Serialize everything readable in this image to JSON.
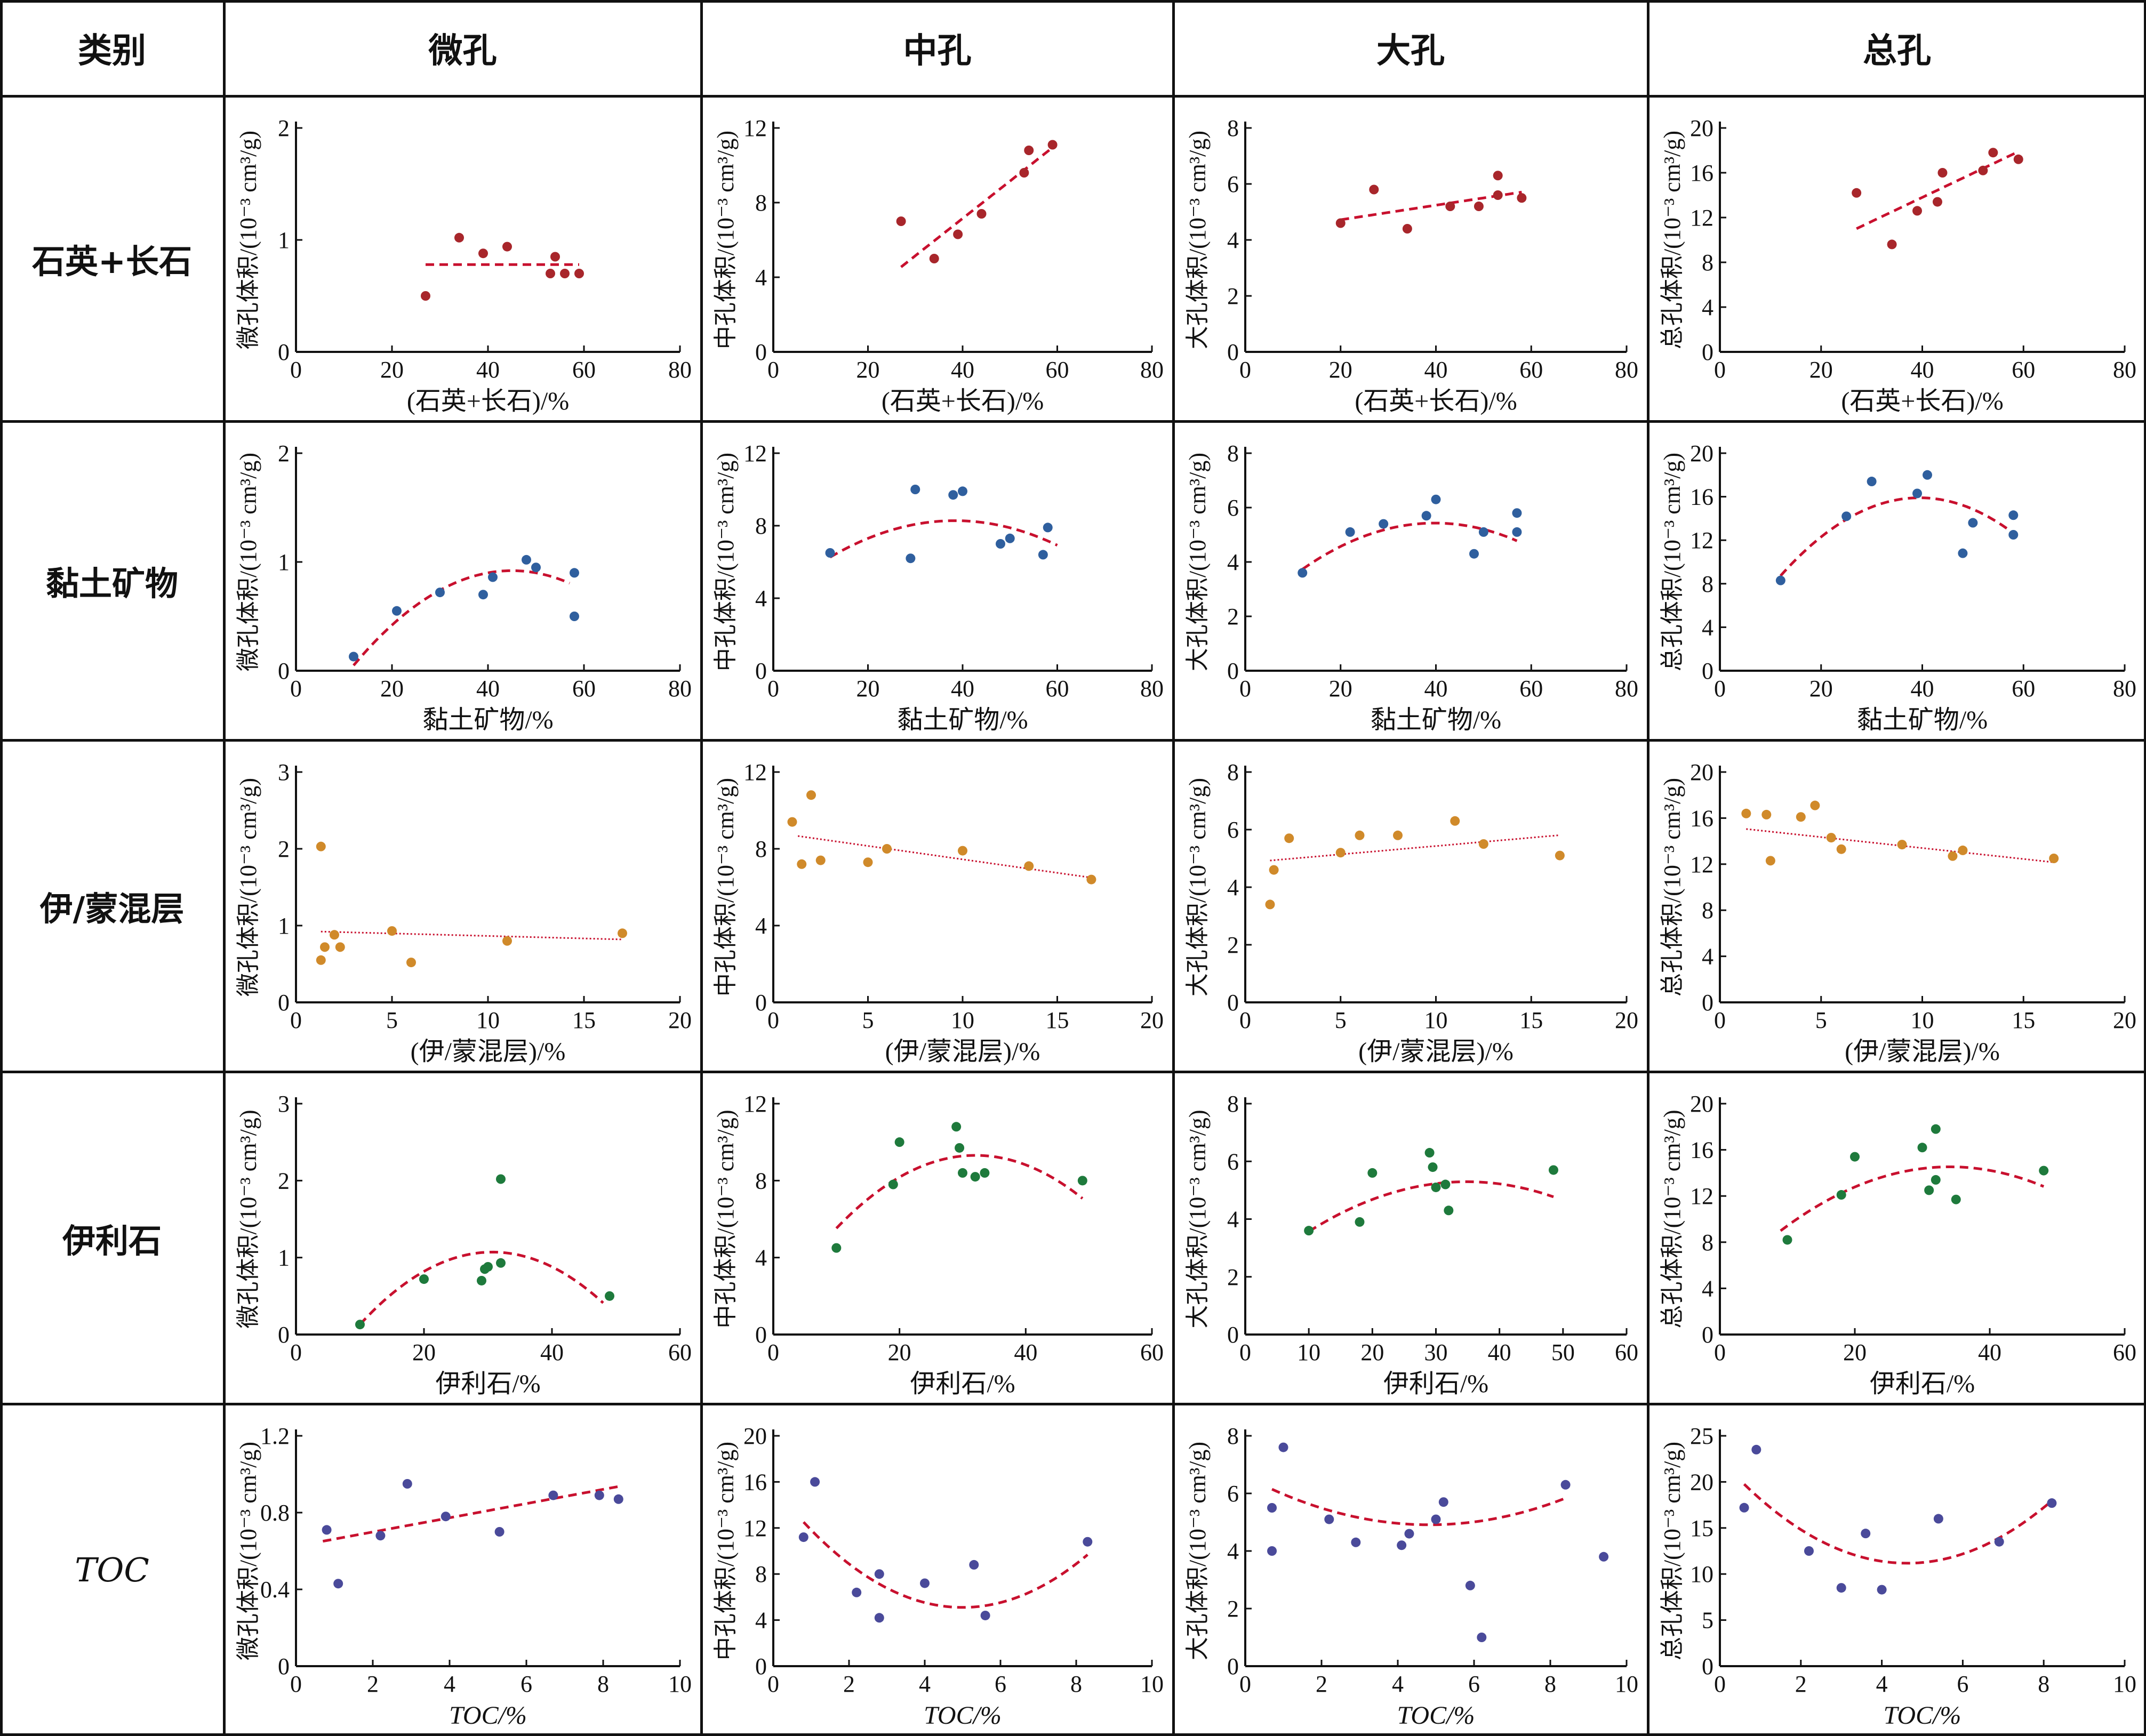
{
  "header": {
    "category": "类别",
    "columns": [
      "微孔",
      "中孔",
      "大孔",
      "总孔"
    ]
  },
  "rows": [
    {
      "label": "石英+长石",
      "italic": false,
      "color": "#a8262b",
      "points_x": [
        27.0,
        34.0,
        39.0,
        44.0,
        53.0,
        54.0,
        56.0,
        59.0
      ],
      "xlabel": "(石英+长石)/%"
    },
    {
      "label": "黏土矿物",
      "italic": false,
      "color": "#2f5f9e",
      "points_x": [
        12.0,
        21.0,
        30.0,
        39.0,
        41.0,
        48.0,
        50.0,
        58.0,
        58.0
      ],
      "xlabel": "黏土矿物/%"
    },
    {
      "label": "伊/蒙混层",
      "italic": false,
      "color": "#d08a2a",
      "points_x": [
        1.3,
        1.5,
        2.0,
        2.3,
        5.0,
        6.0,
        11.0,
        17.0
      ],
      "xlabel": "(伊/蒙混层)/%"
    },
    {
      "label": "伊利石",
      "italic": false,
      "color": "#1e7a3c",
      "points_x": [
        10.0,
        20.0,
        29.0,
        29.5,
        30.0,
        32.0,
        32.0,
        49.0
      ],
      "xlabel": "伊利石/%"
    },
    {
      "label": "TOC",
      "italic": true,
      "color": "#4a4a9a",
      "points_x": [
        0.8,
        1.1,
        2.2,
        2.9,
        3.9,
        5.3,
        6.7,
        7.9,
        8.4
      ],
      "xlabel": "TOC/%"
    }
  ],
  "chart_data": [
    {
      "type": "scatter",
      "title": "微孔 × 石英+长石",
      "xlabel": "(石英+长石)/%",
      "ylabel": "微孔体积/(10⁻³ cm³/g)",
      "xlim": [
        0,
        80
      ],
      "ylim": [
        0,
        2
      ],
      "xticks": [
        0,
        20,
        40,
        60,
        80
      ],
      "yticks": [
        0,
        1,
        2
      ],
      "color": "#a8262b",
      "x": [
        27,
        34,
        39,
        44,
        53,
        54,
        56,
        59
      ],
      "y": [
        0.5,
        1.02,
        0.88,
        0.94,
        0.7,
        0.85,
        0.7,
        0.7
      ],
      "trend": {
        "kind": "poly",
        "coef": [
          0.78
        ],
        "from": 27,
        "to": 59,
        "style": "dashed"
      }
    },
    {
      "type": "scatter",
      "title": "中孔 × 石英+长石",
      "xlabel": "(石英+长石)/%",
      "ylabel": "中孔体积/(10⁻³ cm³/g)",
      "xlim": [
        0,
        80
      ],
      "ylim": [
        0,
        12
      ],
      "xticks": [
        0,
        20,
        40,
        60,
        80
      ],
      "yticks": [
        0,
        4,
        8,
        12
      ],
      "color": "#a8262b",
      "x": [
        27,
        34,
        39,
        44,
        53,
        54,
        59
      ],
      "y": [
        7.0,
        5.0,
        6.3,
        7.4,
        9.6,
        10.8,
        11.1
      ],
      "trend": {
        "kind": "poly",
        "coef": [
          -0.85,
          0.2
        ],
        "from": 27,
        "to": 59,
        "style": "dashed"
      }
    },
    {
      "type": "scatter",
      "title": "大孔 × 石英+长石",
      "xlabel": "(石英+长石)/%",
      "ylabel": "大孔体积/(10⁻³ cm³/g)",
      "xlim": [
        0,
        80
      ],
      "ylim": [
        0,
        8
      ],
      "xticks": [
        0,
        20,
        40,
        60,
        80
      ],
      "yticks": [
        0,
        2,
        4,
        6,
        8
      ],
      "color": "#a8262b",
      "x": [
        20,
        27,
        34,
        43,
        49,
        53,
        53,
        58
      ],
      "y": [
        4.6,
        5.8,
        4.4,
        5.2,
        5.2,
        6.3,
        5.6,
        5.5
      ],
      "trend": {
        "kind": "poly",
        "coef": [
          4.2,
          0.026
        ],
        "from": 20,
        "to": 58,
        "style": "dashed"
      }
    },
    {
      "type": "scatter",
      "title": "总孔 × 石英+长石",
      "xlabel": "(石英+长石)/%",
      "ylabel": "总孔体积/(10⁻³ cm³/g)",
      "xlim": [
        0,
        80
      ],
      "ylim": [
        0,
        20
      ],
      "xticks": [
        0,
        20,
        40,
        60,
        80
      ],
      "yticks": [
        0,
        4,
        8,
        12,
        16,
        20
      ],
      "color": "#a8262b",
      "x": [
        27,
        34,
        39,
        43,
        44,
        52,
        54,
        59
      ],
      "y": [
        14.2,
        9.6,
        12.6,
        13.4,
        16.0,
        16.2,
        17.8,
        17.2
      ],
      "trend": {
        "kind": "poly",
        "coef": [
          5.2,
          0.215
        ],
        "from": 27,
        "to": 59,
        "style": "dashed"
      }
    },
    {
      "type": "scatter",
      "title": "微孔 × 黏土矿物",
      "xlabel": "黏土矿物/%",
      "ylabel": "微孔体积/(10⁻³ cm³/g)",
      "xlim": [
        0,
        80
      ],
      "ylim": [
        0,
        2
      ],
      "xticks": [
        0,
        20,
        40,
        60,
        80
      ],
      "yticks": [
        0,
        1,
        2
      ],
      "color": "#2f5f9e",
      "x": [
        12,
        21,
        30,
        39,
        41,
        48,
        50,
        58,
        58
      ],
      "y": [
        0.13,
        0.55,
        0.72,
        0.7,
        0.86,
        1.02,
        0.95,
        0.5,
        0.9
      ],
      "trend": {
        "kind": "poly",
        "coef": [
          -0.7,
          0.072,
          -0.0008
        ],
        "from": 12,
        "to": 57,
        "style": "dashed"
      }
    },
    {
      "type": "scatter",
      "title": "中孔 × 黏土矿物",
      "xlabel": "黏土矿物/%",
      "ylabel": "中孔体积/(10⁻³ cm³/g)",
      "xlim": [
        0,
        80
      ],
      "ylim": [
        0,
        12
      ],
      "xticks": [
        0,
        20,
        40,
        60,
        80
      ],
      "yticks": [
        0,
        4,
        8,
        12
      ],
      "color": "#2f5f9e",
      "x": [
        12,
        29,
        30,
        38,
        40,
        48,
        50,
        57,
        58
      ],
      "y": [
        6.5,
        6.2,
        10.0,
        9.7,
        9.9,
        7.0,
        7.3,
        6.4,
        7.9
      ],
      "trend": {
        "kind": "poly",
        "coef": [
          4.01,
          0.2225,
          -0.0029
        ],
        "from": 12,
        "to": 60,
        "style": "dashed"
      }
    },
    {
      "type": "scatter",
      "title": "大孔 × 黏土矿物",
      "xlabel": "黏土矿物/%",
      "ylabel": "大孔体积/(10⁻³ cm³/g)",
      "xlim": [
        0,
        80
      ],
      "ylim": [
        0,
        8
      ],
      "xticks": [
        0,
        20,
        40,
        60,
        80
      ],
      "yticks": [
        0,
        2,
        4,
        6,
        8
      ],
      "color": "#2f5f9e",
      "x": [
        12,
        22,
        29,
        38,
        40,
        48,
        50,
        57,
        57
      ],
      "y": [
        3.6,
        5.1,
        5.4,
        5.7,
        6.3,
        4.3,
        5.1,
        5.1,
        5.8
      ],
      "trend": {
        "kind": "poly",
        "coef": [
          1.95,
          0.175,
          -0.0022
        ],
        "from": 12,
        "to": 57,
        "style": "dashed"
      }
    },
    {
      "type": "scatter",
      "title": "总孔 × 黏土矿物",
      "xlabel": "黏土矿物/%",
      "ylabel": "总孔体积/(10⁻³ cm³/g)",
      "xlim": [
        0,
        80
      ],
      "ylim": [
        0,
        20
      ],
      "xticks": [
        0,
        20,
        40,
        60,
        80
      ],
      "yticks": [
        0,
        4,
        8,
        12,
        16,
        20
      ],
      "color": "#2f5f9e",
      "x": [
        12,
        25,
        30,
        39,
        41,
        48,
        50,
        58,
        58
      ],
      "y": [
        8.3,
        14.2,
        17.4,
        16.3,
        18.0,
        10.8,
        13.6,
        12.5,
        14.3
      ],
      "trend": {
        "kind": "poly",
        "coef": [
          1.1,
          0.75,
          -0.0095
        ],
        "from": 12,
        "to": 58,
        "style": "dashed"
      }
    },
    {
      "type": "scatter",
      "title": "微孔 × 伊/蒙混层",
      "xlabel": "(伊/蒙混层)/%",
      "ylabel": "微孔体积/(10⁻³ cm³/g)",
      "xlim": [
        0,
        20
      ],
      "ylim": [
        0,
        3
      ],
      "xticks": [
        0,
        5,
        10,
        15,
        20
      ],
      "yticks": [
        0,
        1,
        2,
        3
      ],
      "color": "#d08a2a",
      "x": [
        1.3,
        1.3,
        1.5,
        2.0,
        2.3,
        5.0,
        6.0,
        11.0,
        17.0
      ],
      "y": [
        2.03,
        0.55,
        0.72,
        0.88,
        0.72,
        0.93,
        0.52,
        0.8,
        0.9
      ],
      "trend": {
        "kind": "poly",
        "coef": [
          0.93,
          -0.0065
        ],
        "from": 1.3,
        "to": 17,
        "style": "dotted"
      }
    },
    {
      "type": "scatter",
      "title": "中孔 × 伊/蒙混层",
      "xlabel": "(伊/蒙混层)/%",
      "ylabel": "中孔体积/(10⁻³ cm³/g)",
      "xlim": [
        0,
        20
      ],
      "ylim": [
        0,
        12
      ],
      "xticks": [
        0,
        5,
        10,
        15,
        20
      ],
      "yticks": [
        0,
        4,
        8,
        12
      ],
      "color": "#d08a2a",
      "x": [
        1.0,
        1.5,
        2.0,
        2.5,
        5.0,
        6.0,
        10.0,
        13.5,
        16.8
      ],
      "y": [
        9.4,
        7.2,
        10.8,
        7.4,
        7.3,
        8.0,
        7.9,
        7.1,
        6.4
      ],
      "trend": {
        "kind": "poly",
        "coef": [
          8.85,
          -0.14
        ],
        "from": 1.3,
        "to": 16.8,
        "style": "dotted"
      }
    },
    {
      "type": "scatter",
      "title": "大孔 × 伊/蒙混层",
      "xlabel": "(伊/蒙混层)/%",
      "ylabel": "大孔体积/(10⁻³ cm³/g)",
      "xlim": [
        0,
        20
      ],
      "ylim": [
        0,
        8
      ],
      "xticks": [
        0,
        5,
        10,
        15,
        20
      ],
      "yticks": [
        0,
        2,
        4,
        6,
        8
      ],
      "color": "#d08a2a",
      "x": [
        1.3,
        1.5,
        2.3,
        5.0,
        6.0,
        8.0,
        11.0,
        12.5,
        16.5
      ],
      "y": [
        3.4,
        4.6,
        5.7,
        5.2,
        5.8,
        5.8,
        6.3,
        5.5,
        5.1
      ],
      "trend": {
        "kind": "poly",
        "coef": [
          4.85,
          0.058
        ],
        "from": 1.3,
        "to": 16.5,
        "style": "dotted"
      }
    },
    {
      "type": "scatter",
      "title": "总孔 × 伊/蒙混层",
      "xlabel": "(伊/蒙混层)/%",
      "ylabel": "总孔体积/(10⁻³ cm³/g)",
      "xlim": [
        0,
        20
      ],
      "ylim": [
        0,
        20
      ],
      "xticks": [
        0,
        5,
        10,
        15,
        20
      ],
      "yticks": [
        0,
        4,
        8,
        12,
        16,
        20
      ],
      "color": "#d08a2a",
      "x": [
        1.3,
        2.3,
        2.5,
        4.0,
        4.7,
        5.5,
        6.0,
        9.0,
        11.5,
        12.0,
        16.5
      ],
      "y": [
        16.4,
        16.3,
        12.3,
        16.1,
        17.1,
        14.3,
        13.3,
        13.7,
        12.7,
        13.2,
        12.5
      ],
      "trend": {
        "kind": "poly",
        "coef": [
          15.3,
          -0.19
        ],
        "from": 1.3,
        "to": 16.5,
        "style": "dotted"
      }
    },
    {
      "type": "scatter",
      "title": "微孔 × 伊利石",
      "xlabel": "伊利石/%",
      "ylabel": "微孔体积/(10⁻³ cm³/g)",
      "xlim": [
        0,
        60
      ],
      "ylim": [
        0,
        3
      ],
      "xticks": [
        0,
        20,
        40,
        60
      ],
      "yticks": [
        0,
        1,
        2,
        3
      ],
      "color": "#1e7a3c",
      "x": [
        10,
        20,
        29,
        29.5,
        30,
        32,
        32,
        49
      ],
      "y": [
        0.13,
        0.72,
        0.7,
        0.85,
        0.88,
        0.93,
        2.02,
        0.5
      ],
      "trend": {
        "kind": "poly",
        "coef": [
          -1.0,
          0.135,
          -0.0022
        ],
        "from": 10,
        "to": 48,
        "style": "dashed"
      }
    },
    {
      "type": "scatter",
      "title": "中孔 × 伊利石",
      "xlabel": "伊利石/%",
      "ylabel": "中孔体积/(10⁻³ cm³/g)",
      "xlim": [
        0,
        60
      ],
      "ylim": [
        0,
        12
      ],
      "xticks": [
        0,
        20,
        40,
        60
      ],
      "yticks": [
        0,
        4,
        8,
        12
      ],
      "color": "#1e7a3c",
      "x": [
        10,
        19,
        20,
        29,
        29.5,
        30,
        32,
        33.5,
        49
      ],
      "y": [
        4.5,
        7.8,
        10.0,
        10.8,
        9.7,
        8.4,
        8.2,
        8.4,
        8.0
      ],
      "trend": {
        "kind": "poly",
        "coef": [
          1.3,
          0.5,
          -0.0078
        ],
        "from": 10,
        "to": 49,
        "style": "dashed"
      }
    },
    {
      "type": "scatter",
      "title": "大孔 × 伊利石",
      "xlabel": "伊利石/%",
      "ylabel": "大孔体积/(10⁻³ cm³/g)",
      "xlim": [
        0,
        60
      ],
      "ylim": [
        0,
        8
      ],
      "xticks": [
        0,
        10,
        20,
        30,
        40,
        50,
        60
      ],
      "yticks": [
        0,
        2,
        4,
        6,
        8
      ],
      "color": "#1e7a3c",
      "x": [
        10,
        18,
        20,
        29,
        29.5,
        30,
        31.5,
        32,
        48.5
      ],
      "y": [
        3.6,
        3.9,
        5.6,
        6.3,
        5.8,
        5.1,
        5.2,
        4.3,
        5.7
      ],
      "trend": {
        "kind": "poly",
        "coef": [
          1.9,
          0.195,
          -0.0028
        ],
        "from": 10,
        "to": 48.5,
        "style": "dashed"
      }
    },
    {
      "type": "scatter",
      "title": "总孔 × 伊利石",
      "xlabel": "伊利石/%",
      "ylabel": "总孔体积/(10⁻³ cm³/g)",
      "xlim": [
        0,
        60
      ],
      "ylim": [
        0,
        20
      ],
      "xticks": [
        0,
        20,
        40,
        60
      ],
      "yticks": [
        0,
        4,
        8,
        12,
        16,
        20
      ],
      "color": "#1e7a3c",
      "x": [
        10,
        18,
        20,
        30,
        31,
        32,
        32,
        35,
        48
      ],
      "y": [
        8.2,
        12.1,
        15.4,
        16.2,
        12.5,
        13.4,
        17.8,
        11.7,
        14.2
      ],
      "trend": {
        "kind": "poly",
        "coef": [
          4.3,
          0.6,
          -0.0088
        ],
        "from": 9,
        "to": 48,
        "style": "dashed"
      }
    },
    {
      "type": "scatter",
      "title": "微孔 × TOC",
      "xlabel": "TOC/%",
      "ylabel": "微孔体积/(10⁻³ cm³/g)",
      "xlim": [
        0,
        10
      ],
      "ylim": [
        0,
        1.2
      ],
      "xticks": [
        0,
        2,
        4,
        6,
        8,
        10
      ],
      "yticks": [
        0,
        0.4,
        0.8,
        1.2
      ],
      "color": "#4a4a9a",
      "x": [
        0.8,
        1.1,
        2.2,
        2.9,
        3.9,
        5.3,
        6.7,
        7.9,
        8.4
      ],
      "y": [
        0.71,
        0.43,
        0.68,
        0.95,
        0.78,
        0.7,
        0.89,
        0.89,
        0.87
      ],
      "trend": {
        "kind": "poly",
        "coef": [
          0.625,
          0.037
        ],
        "from": 0.7,
        "to": 8.4,
        "style": "dashed"
      }
    },
    {
      "type": "scatter",
      "title": "中孔 × TOC",
      "xlabel": "TOC/%",
      "ylabel": "中孔体积/(10⁻³ cm³/g)",
      "xlim": [
        0,
        10
      ],
      "ylim": [
        0,
        20
      ],
      "xticks": [
        0,
        2,
        4,
        6,
        8,
        10
      ],
      "yticks": [
        0,
        4,
        8,
        12,
        16,
        20
      ],
      "color": "#4a4a9a",
      "x": [
        0.8,
        1.1,
        2.2,
        2.8,
        2.8,
        4.0,
        5.3,
        5.6,
        8.3
      ],
      "y": [
        11.2,
        16.0,
        6.4,
        4.2,
        8.0,
        7.2,
        8.8,
        4.4,
        10.8
      ],
      "trend": {
        "kind": "poly",
        "coef": [
          15.6,
          -4.2,
          0.42
        ],
        "from": 0.8,
        "to": 8.3,
        "style": "dashed"
      }
    },
    {
      "type": "scatter",
      "title": "大孔 × TOC",
      "xlabel": "TOC/%",
      "ylabel": "大孔体积/(10⁻³ cm³/g)",
      "xlim": [
        0,
        10
      ],
      "ylim": [
        0,
        8
      ],
      "xticks": [
        0,
        2,
        4,
        6,
        8,
        10
      ],
      "yticks": [
        0,
        2,
        4,
        6,
        8
      ],
      "color": "#4a4a9a",
      "x": [
        0.7,
        0.7,
        1.0,
        2.2,
        2.9,
        4.1,
        4.3,
        5.0,
        5.2,
        5.9,
        6.2,
        8.4,
        9.4
      ],
      "y": [
        5.5,
        4.0,
        7.6,
        5.1,
        4.3,
        4.2,
        4.6,
        5.1,
        5.7,
        2.8,
        1.0,
        6.3,
        3.8
      ],
      "trend": {
        "kind": "poly",
        "coef": [
          6.6,
          -0.7,
          0.0725
        ],
        "from": 0.7,
        "to": 8.4,
        "style": "dashed"
      }
    },
    {
      "type": "scatter",
      "title": "总孔 × TOC",
      "xlabel": "TOC/%",
      "ylabel": "总孔体积/(10⁻³ cm³/g)",
      "xlim": [
        0,
        10
      ],
      "ylim": [
        0,
        25
      ],
      "xticks": [
        0,
        2,
        4,
        6,
        8,
        10
      ],
      "yticks": [
        0,
        5,
        10,
        15,
        20,
        25
      ],
      "color": "#4a4a9a",
      "x": [
        0.6,
        0.9,
        2.2,
        3.0,
        3.6,
        4.0,
        5.4,
        6.9,
        8.2
      ],
      "y": [
        17.2,
        23.5,
        12.5,
        8.5,
        14.4,
        8.3,
        16.0,
        13.5,
        17.7
      ],
      "trend": {
        "kind": "poly",
        "coef": [
          22.5,
          -4.9,
          0.53
        ],
        "from": 0.6,
        "to": 8.2,
        "style": "dashed"
      }
    }
  ]
}
